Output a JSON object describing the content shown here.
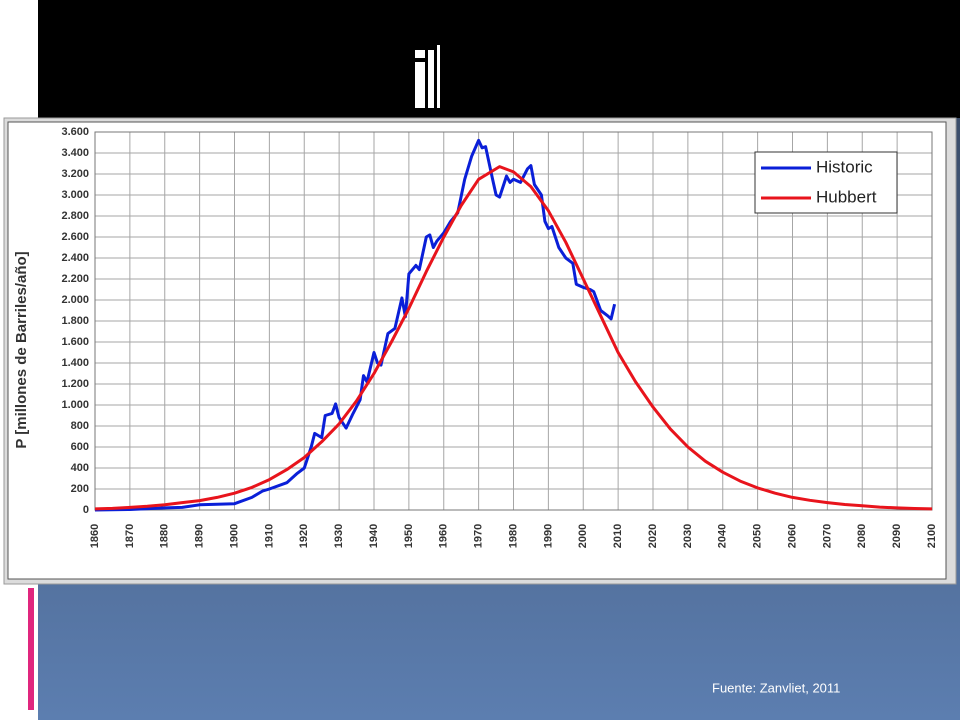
{
  "chart_data": {
    "type": "line",
    "ylabel": "P  [millones de Barriles/año]",
    "xlim": [
      1860,
      2100
    ],
    "xticks": [
      1860,
      1870,
      1880,
      1890,
      1900,
      1910,
      1920,
      1930,
      1940,
      1950,
      1960,
      1970,
      1980,
      1990,
      2000,
      2010,
      2020,
      2030,
      2040,
      2050,
      2060,
      2070,
      2080,
      2090,
      2100
    ],
    "ylim": [
      0,
      3600
    ],
    "yticks": [
      0,
      200,
      400,
      600,
      800,
      {
        "value": 1000,
        "label": "1.000"
      },
      {
        "value": 1200,
        "label": "1.200"
      },
      {
        "value": 1400,
        "label": "1.400"
      },
      {
        "value": 1600,
        "label": "1.600"
      },
      {
        "value": 1800,
        "label": "1.800"
      },
      {
        "value": 2000,
        "label": "2.000"
      },
      {
        "value": 2200,
        "label": "2.200"
      },
      {
        "value": 2400,
        "label": "2.400"
      },
      {
        "value": 2600,
        "label": "2.600"
      },
      {
        "value": 2800,
        "label": "2.800"
      },
      {
        "value": 3000,
        "label": "3.000"
      },
      {
        "value": 3200,
        "label": "3.200"
      },
      {
        "value": 3400,
        "label": "3.400"
      },
      {
        "value": 3600,
        "label": "3.600"
      }
    ],
    "grid": true,
    "legend": "top-right",
    "series": [
      {
        "name": "Historic",
        "color": "#0a1fd8",
        "x": [
          1860,
          1870,
          1880,
          1885,
          1890,
          1895,
          1900,
          1905,
          1908,
          1910,
          1915,
          1918,
          1920,
          1922,
          1923,
          1925,
          1926,
          1928,
          1929,
          1930,
          1932,
          1934,
          1936,
          1937,
          1938,
          1940,
          1941,
          1942,
          1944,
          1946,
          1948,
          1949,
          1950,
          1952,
          1953,
          1955,
          1956,
          1957,
          1958,
          1960,
          1962,
          1964,
          1966,
          1968,
          1970,
          1971,
          1972,
          1974,
          1975,
          1976,
          1978,
          1979,
          1980,
          1982,
          1984,
          1985,
          1986,
          1988,
          1989,
          1990,
          1991,
          1993,
          1995,
          1997,
          1998,
          2000,
          2002,
          2003,
          2005,
          2007,
          2008,
          2009
        ],
        "values": [
          0,
          5,
          20,
          25,
          50,
          55,
          60,
          120,
          180,
          200,
          260,
          350,
          400,
          600,
          730,
          690,
          900,
          920,
          1010,
          880,
          780,
          920,
          1050,
          1280,
          1220,
          1500,
          1400,
          1380,
          1680,
          1730,
          2020,
          1840,
          2250,
          2330,
          2290,
          2600,
          2620,
          2500,
          2560,
          2640,
          2750,
          2830,
          3150,
          3370,
          3520,
          3450,
          3460,
          3150,
          3000,
          2980,
          3180,
          3120,
          3150,
          3120,
          3250,
          3280,
          3100,
          3000,
          2750,
          2680,
          2700,
          2500,
          2400,
          2350,
          2150,
          2120,
          2100,
          2080,
          1900,
          1850,
          1820,
          1960
        ]
      },
      {
        "name": "Hubbert",
        "color": "#e8141c",
        "x": [
          1860,
          1865,
          1870,
          1875,
          1880,
          1885,
          1890,
          1895,
          1900,
          1905,
          1910,
          1915,
          1920,
          1925,
          1930,
          1935,
          1940,
          1945,
          1950,
          1955,
          1960,
          1965,
          1970,
          1976,
          1980,
          1985,
          1990,
          1995,
          2000,
          2005,
          2010,
          2015,
          2020,
          2025,
          2030,
          2035,
          2040,
          2045,
          2050,
          2055,
          2060,
          2065,
          2070,
          2075,
          2080,
          2085,
          2090,
          2095,
          2100
        ],
        "values": [
          10,
          15,
          25,
          35,
          50,
          70,
          90,
          120,
          160,
          215,
          290,
          385,
          500,
          650,
          820,
          1040,
          1300,
          1600,
          1920,
          2270,
          2600,
          2900,
          3150,
          3270,
          3220,
          3080,
          2850,
          2550,
          2200,
          1850,
          1500,
          1220,
          980,
          770,
          600,
          465,
          360,
          275,
          210,
          160,
          120,
          92,
          70,
          52,
          40,
          28,
          20,
          14,
          10
        ]
      }
    ]
  },
  "source": "Fuente: Zanvliet, 2011"
}
